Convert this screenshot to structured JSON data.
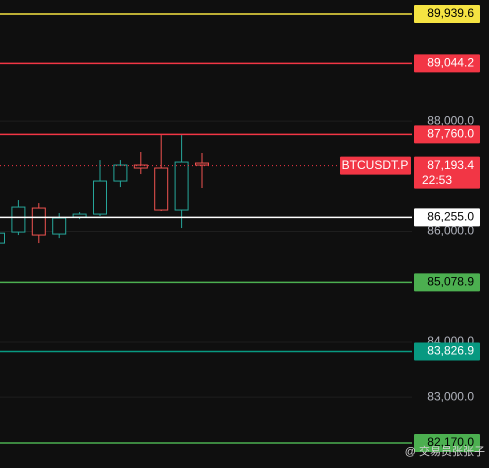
{
  "chart_data": {
    "type": "candlestick",
    "ylim": [
      81717,
      90193
    ],
    "yticks": [
      {
        "value": 88000,
        "label": "88,000.0"
      },
      {
        "value": 86000,
        "label": "86,000.0"
      },
      {
        "value": 84000,
        "label": "84,000.0"
      },
      {
        "value": 83000,
        "label": "83,000.0"
      }
    ],
    "up_color": "#26a69a",
    "down_color": "#ef5350",
    "candles": [
      {
        "open": 85790,
        "high": 86000,
        "low": 85780,
        "close": 85970
      },
      {
        "open": 85990,
        "high": 86570,
        "low": 85936,
        "close": 86443
      },
      {
        "open": 86425,
        "high": 86515,
        "low": 85791,
        "close": 85936
      },
      {
        "open": 85954,
        "high": 86334,
        "low": 85881,
        "close": 86244
      },
      {
        "open": 86262,
        "high": 86352,
        "low": 86225,
        "close": 86316
      },
      {
        "open": 86316,
        "high": 87294,
        "low": 86280,
        "close": 86914
      },
      {
        "open": 86914,
        "high": 87294,
        "low": 86805,
        "close": 87204
      },
      {
        "open": 87204,
        "high": 87440,
        "low": 87041,
        "close": 87150
      },
      {
        "open": 87150,
        "high": 87747,
        "low": 86371,
        "close": 86389
      },
      {
        "open": 86389,
        "high": 87747,
        "low": 86063,
        "close": 87258
      },
      {
        "open": 87240,
        "high": 87421,
        "low": 86787,
        "close": 87204
      }
    ],
    "price_lines": [
      {
        "value": 89939.6,
        "label": "89,939.6",
        "color": "#f5e342",
        "text_color": "#000000"
      },
      {
        "value": 89044.2,
        "label": "89,044.2",
        "color": "#f23645",
        "text_color": "#ffffff"
      },
      {
        "value": 87760.0,
        "label": "87,760.0",
        "color": "#f23645",
        "text_color": "#ffffff"
      },
      {
        "value": 86255.0,
        "label": "86,255.0",
        "color": "#ffffff",
        "text_color": "#000000"
      },
      {
        "value": 85078.9,
        "label": "85,078.9",
        "color": "#4caf50",
        "text_color": "#000000"
      },
      {
        "value": 83826.9,
        "label": "83,826.9",
        "color": "#089981",
        "text_color": "#ffffff"
      },
      {
        "value": 82170.0,
        "label": "82,170.0",
        "color": "#4caf50",
        "text_color": "#000000"
      }
    ],
    "current_price": {
      "symbol": "BTCUSDT.P",
      "value": 87193.4,
      "label": "87,193.4",
      "countdown": "22:53",
      "color": "#f23645"
    },
    "watermark": "@ 交易员张张子"
  }
}
